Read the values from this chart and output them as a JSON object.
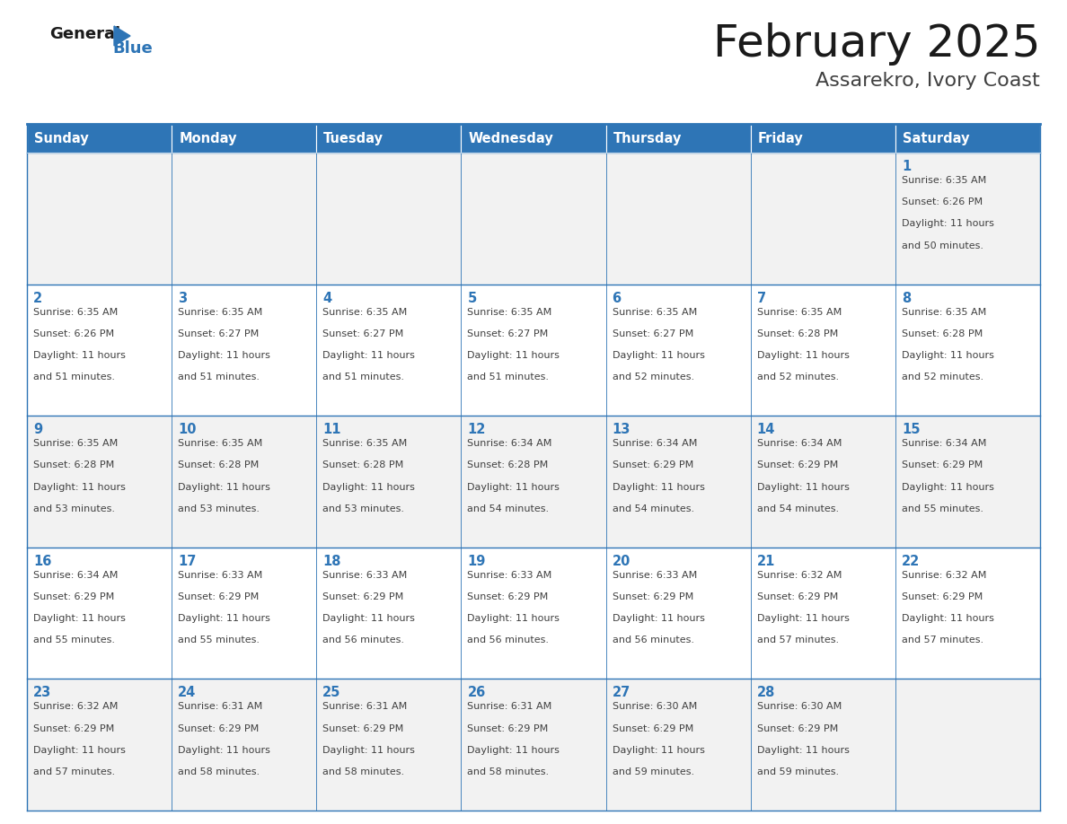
{
  "title": "February 2025",
  "subtitle": "Assarekro, Ivory Coast",
  "header_color": "#2E75B6",
  "header_text_color": "#FFFFFF",
  "cell_bg_even": "#F2F2F2",
  "cell_bg_odd": "#FFFFFF",
  "border_color": "#2E75B6",
  "title_color": "#1A1A1A",
  "subtitle_color": "#404040",
  "day_number_color": "#2E75B6",
  "cell_text_color": "#404040",
  "days_of_week": [
    "Sunday",
    "Monday",
    "Tuesday",
    "Wednesday",
    "Thursday",
    "Friday",
    "Saturday"
  ],
  "logo_general_color": "#1A1A1A",
  "logo_blue_color": "#2E75B6",
  "calendar_data": [
    [
      {
        "day": null
      },
      {
        "day": null
      },
      {
        "day": null
      },
      {
        "day": null
      },
      {
        "day": null
      },
      {
        "day": null
      },
      {
        "day": 1,
        "sunrise": "6:35 AM",
        "sunset": "6:26 PM",
        "daylight_hours": 11,
        "daylight_minutes": 50
      }
    ],
    [
      {
        "day": 2,
        "sunrise": "6:35 AM",
        "sunset": "6:26 PM",
        "daylight_hours": 11,
        "daylight_minutes": 51
      },
      {
        "day": 3,
        "sunrise": "6:35 AM",
        "sunset": "6:27 PM",
        "daylight_hours": 11,
        "daylight_minutes": 51
      },
      {
        "day": 4,
        "sunrise": "6:35 AM",
        "sunset": "6:27 PM",
        "daylight_hours": 11,
        "daylight_minutes": 51
      },
      {
        "day": 5,
        "sunrise": "6:35 AM",
        "sunset": "6:27 PM",
        "daylight_hours": 11,
        "daylight_minutes": 51
      },
      {
        "day": 6,
        "sunrise": "6:35 AM",
        "sunset": "6:27 PM",
        "daylight_hours": 11,
        "daylight_minutes": 52
      },
      {
        "day": 7,
        "sunrise": "6:35 AM",
        "sunset": "6:28 PM",
        "daylight_hours": 11,
        "daylight_minutes": 52
      },
      {
        "day": 8,
        "sunrise": "6:35 AM",
        "sunset": "6:28 PM",
        "daylight_hours": 11,
        "daylight_minutes": 52
      }
    ],
    [
      {
        "day": 9,
        "sunrise": "6:35 AM",
        "sunset": "6:28 PM",
        "daylight_hours": 11,
        "daylight_minutes": 53
      },
      {
        "day": 10,
        "sunrise": "6:35 AM",
        "sunset": "6:28 PM",
        "daylight_hours": 11,
        "daylight_minutes": 53
      },
      {
        "day": 11,
        "sunrise": "6:35 AM",
        "sunset": "6:28 PM",
        "daylight_hours": 11,
        "daylight_minutes": 53
      },
      {
        "day": 12,
        "sunrise": "6:34 AM",
        "sunset": "6:28 PM",
        "daylight_hours": 11,
        "daylight_minutes": 54
      },
      {
        "day": 13,
        "sunrise": "6:34 AM",
        "sunset": "6:29 PM",
        "daylight_hours": 11,
        "daylight_minutes": 54
      },
      {
        "day": 14,
        "sunrise": "6:34 AM",
        "sunset": "6:29 PM",
        "daylight_hours": 11,
        "daylight_minutes": 54
      },
      {
        "day": 15,
        "sunrise": "6:34 AM",
        "sunset": "6:29 PM",
        "daylight_hours": 11,
        "daylight_minutes": 55
      }
    ],
    [
      {
        "day": 16,
        "sunrise": "6:34 AM",
        "sunset": "6:29 PM",
        "daylight_hours": 11,
        "daylight_minutes": 55
      },
      {
        "day": 17,
        "sunrise": "6:33 AM",
        "sunset": "6:29 PM",
        "daylight_hours": 11,
        "daylight_minutes": 55
      },
      {
        "day": 18,
        "sunrise": "6:33 AM",
        "sunset": "6:29 PM",
        "daylight_hours": 11,
        "daylight_minutes": 56
      },
      {
        "day": 19,
        "sunrise": "6:33 AM",
        "sunset": "6:29 PM",
        "daylight_hours": 11,
        "daylight_minutes": 56
      },
      {
        "day": 20,
        "sunrise": "6:33 AM",
        "sunset": "6:29 PM",
        "daylight_hours": 11,
        "daylight_minutes": 56
      },
      {
        "day": 21,
        "sunrise": "6:32 AM",
        "sunset": "6:29 PM",
        "daylight_hours": 11,
        "daylight_minutes": 57
      },
      {
        "day": 22,
        "sunrise": "6:32 AM",
        "sunset": "6:29 PM",
        "daylight_hours": 11,
        "daylight_minutes": 57
      }
    ],
    [
      {
        "day": 23,
        "sunrise": "6:32 AM",
        "sunset": "6:29 PM",
        "daylight_hours": 11,
        "daylight_minutes": 57
      },
      {
        "day": 24,
        "sunrise": "6:31 AM",
        "sunset": "6:29 PM",
        "daylight_hours": 11,
        "daylight_minutes": 58
      },
      {
        "day": 25,
        "sunrise": "6:31 AM",
        "sunset": "6:29 PM",
        "daylight_hours": 11,
        "daylight_minutes": 58
      },
      {
        "day": 26,
        "sunrise": "6:31 AM",
        "sunset": "6:29 PM",
        "daylight_hours": 11,
        "daylight_minutes": 58
      },
      {
        "day": 27,
        "sunrise": "6:30 AM",
        "sunset": "6:29 PM",
        "daylight_hours": 11,
        "daylight_minutes": 59
      },
      {
        "day": 28,
        "sunrise": "6:30 AM",
        "sunset": "6:29 PM",
        "daylight_hours": 11,
        "daylight_minutes": 59
      },
      {
        "day": null
      }
    ]
  ]
}
